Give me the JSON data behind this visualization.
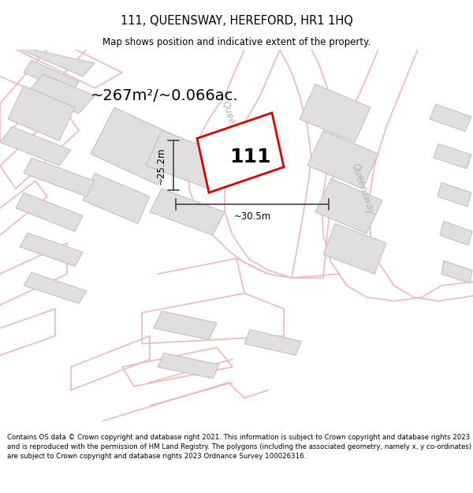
{
  "title": "111, QUEENSWAY, HEREFORD, HR1 1HQ",
  "subtitle": "Map shows position and indicative extent of the property.",
  "footer": "Contains OS data © Crown copyright and database right 2021. This information is subject to Crown copyright and database rights 2023 and is reproduced with the permission of HM Land Registry. The polygons (including the associated geometry, namely x, y co-ordinates) are subject to Crown copyright and database rights 2023 Ordnance Survey 100026316.",
  "area_text": "~267m²/~0.066ac.",
  "number_label": "111",
  "dim_width": "~30.5m",
  "dim_height": "~25.2m",
  "map_bg": "#f7f5f5",
  "road_outline": "#f0b8b8",
  "road_fill": "#f7f5f5",
  "building_fill": "#e0dede",
  "building_edge": "#c8c0c0",
  "plot_fill": "#ffffff",
  "plot_edge": "#dd0000",
  "road_label_color": "#b8b0b0",
  "dim_line_color": "#505050"
}
